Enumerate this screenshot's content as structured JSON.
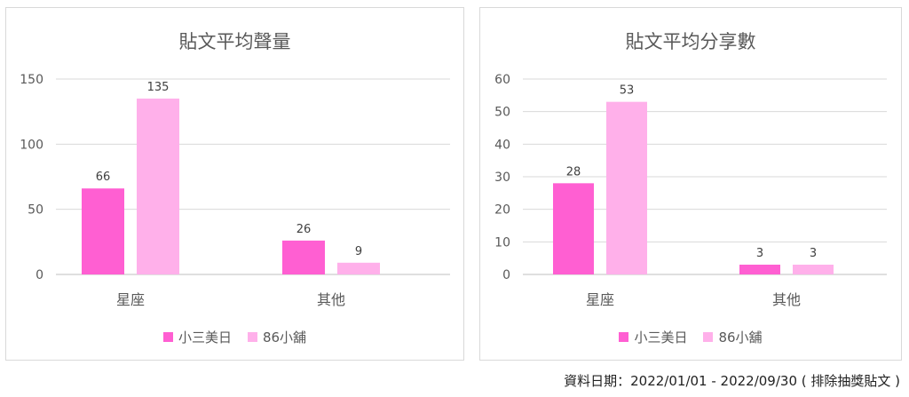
{
  "charts": [
    {
      "type": "bar",
      "title": "貼文平均聲量",
      "categories": [
        "星座",
        "其他"
      ],
      "series": [
        {
          "name": "小三美日",
          "values": [
            66,
            26
          ],
          "color": "#ff5fd2"
        },
        {
          "name": "86小舖",
          "values": [
            135,
            9
          ],
          "color": "#ffb0ea"
        }
      ],
      "yticks": [
        0,
        50,
        100,
        150
      ],
      "ylim": [
        0,
        150
      ],
      "grid": true,
      "legend": "bottom"
    },
    {
      "type": "bar",
      "title": "貼文平均分享數",
      "categories": [
        "星座",
        "其他"
      ],
      "series": [
        {
          "name": "小三美日",
          "values": [
            28,
            3
          ],
          "color": "#ff5fd2"
        },
        {
          "name": "86小舖",
          "values": [
            53,
            3
          ],
          "color": "#ffb0ea"
        }
      ],
      "yticks": [
        0,
        10,
        20,
        30,
        40,
        50,
        60
      ],
      "ylim": [
        0,
        60
      ],
      "grid": true,
      "legend": "bottom"
    }
  ],
  "chart_data": [
    {
      "type": "bar",
      "title": "貼文平均聲量",
      "categories": [
        "星座",
        "其他"
      ],
      "series": [
        {
          "name": "小三美日",
          "values": [
            66,
            26
          ]
        },
        {
          "name": "86小舖",
          "values": [
            135,
            9
          ]
        }
      ],
      "ylim": [
        0,
        150
      ],
      "grid": true,
      "legend": "bottom"
    },
    {
      "type": "bar",
      "title": "貼文平均分享數",
      "categories": [
        "星座",
        "其他"
      ],
      "series": [
        {
          "name": "小三美日",
          "values": [
            28,
            3
          ]
        },
        {
          "name": "86小舖",
          "values": [
            53,
            3
          ]
        }
      ],
      "ylim": [
        0,
        60
      ],
      "grid": true,
      "legend": "bottom"
    }
  ],
  "footer": {
    "note": "資料日期：2022/01/01 - 2022/09/30 ( 排除抽獎貼文 )"
  }
}
